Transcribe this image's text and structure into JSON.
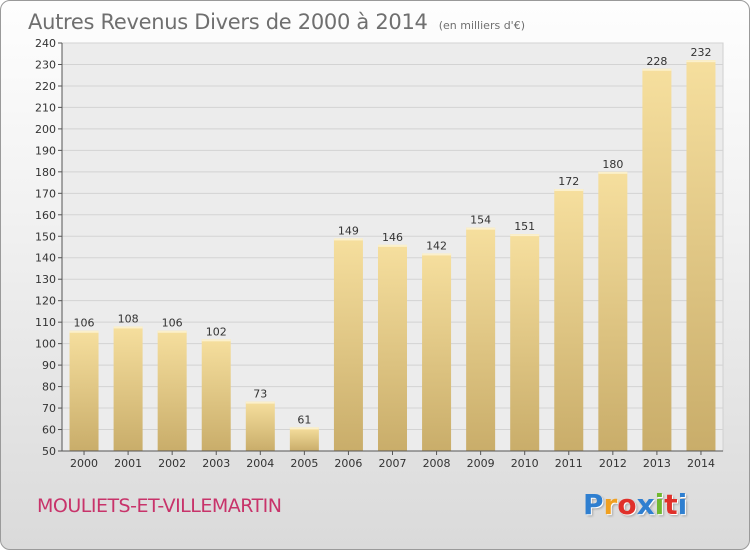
{
  "header": {
    "title": "Autres Revenus Divers de 2000 à 2014",
    "subtitle": "(en milliers d'€)"
  },
  "footer": {
    "commune": "MOULIETS-ET-VILLEMARTIN",
    "logo_text": "Proxiti",
    "logo_colors": [
      "#2f7fd0",
      "#f0a020",
      "#e0302a",
      "#2f7fd0",
      "#70b830",
      "#e0302a",
      "#2f7fd0"
    ]
  },
  "chart_data": {
    "type": "bar",
    "title": "Autres Revenus Divers de 2000 à 2014",
    "subtitle": "(en milliers d'€)",
    "categories": [
      "2000",
      "2001",
      "2002",
      "2003",
      "2004",
      "2005",
      "2006",
      "2007",
      "2008",
      "2009",
      "2010",
      "2011",
      "2012",
      "2013",
      "2014"
    ],
    "values": [
      106,
      108,
      106,
      102,
      73,
      61,
      149,
      146,
      142,
      154,
      151,
      172,
      180,
      228,
      232
    ],
    "ylim": [
      50,
      240
    ],
    "yticks": [
      50,
      60,
      70,
      80,
      90,
      100,
      110,
      120,
      130,
      140,
      150,
      160,
      170,
      180,
      190,
      200,
      210,
      220,
      230,
      240
    ],
    "xlabel": "",
    "ylabel": "",
    "grid": true,
    "bar_color_top": "#f6df9e",
    "bar_color_bottom": "#c9ad6a"
  }
}
